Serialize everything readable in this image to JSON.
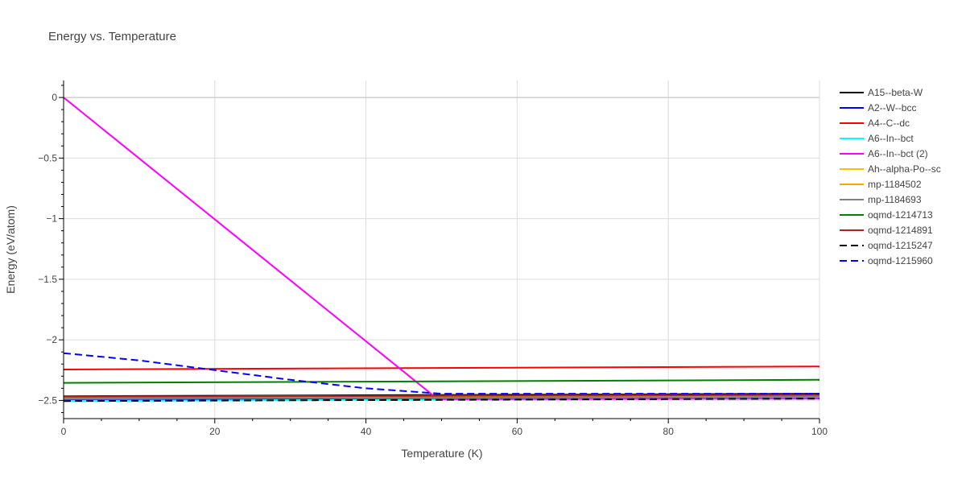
{
  "chart_data": {
    "type": "line",
    "title": "Energy vs. Temperature",
    "xlabel": "Temperature (K)",
    "ylabel": "Energy (eV/atom)",
    "xlim": [
      0,
      100
    ],
    "ylim": [
      -2.65,
      0.14
    ],
    "xticks": [
      0,
      20,
      40,
      60,
      80,
      100
    ],
    "xtick_labels": [
      "0",
      "20",
      "40",
      "60",
      "80",
      "100"
    ],
    "yticks": [
      0,
      -0.5,
      -1,
      -1.5,
      -2,
      -2.5
    ],
    "ytick_labels": [
      "0",
      "−0.5",
      "−1",
      "−1.5",
      "−2",
      "−2.5"
    ],
    "grid": true,
    "legend_position": "right",
    "series": [
      {
        "name": "A15--beta-W",
        "color": "#000000",
        "dash": "solid",
        "x": [
          0,
          100
        ],
        "y": [
          -2.465,
          -2.445
        ]
      },
      {
        "name": "A2--W--bcc",
        "color": "#0000ff",
        "dash": "solid",
        "x": [
          0,
          100
        ],
        "y": [
          -2.49,
          -2.475
        ]
      },
      {
        "name": "A4--C--dc",
        "color": "#ff0000",
        "dash": "solid",
        "x": [
          0,
          100
        ],
        "y": [
          -2.245,
          -2.22
        ]
      },
      {
        "name": "A6--In--bct",
        "color": "#00ffff",
        "dash": "solid",
        "x": [
          0,
          100
        ],
        "y": [
          -2.505,
          -2.48
        ]
      },
      {
        "name": "A6--In--bct (2)",
        "color": "#ff00ff",
        "dash": "solid",
        "x": [
          0,
          49.5,
          100
        ],
        "y": [
          0,
          -2.49,
          -2.485
        ]
      },
      {
        "name": "Ah--alpha-Po--sc",
        "color": "#ffc000",
        "dash": "solid",
        "x": [
          0,
          100
        ],
        "y": [
          -2.48,
          -2.46
        ]
      },
      {
        "name": "mp-1184502",
        "color": "#ffa500",
        "dash": "solid",
        "x": [
          0,
          100
        ],
        "y": [
          -2.47,
          -2.455
        ]
      },
      {
        "name": "mp-1184693",
        "color": "#808080",
        "dash": "solid",
        "x": [
          0,
          100
        ],
        "y": [
          -2.485,
          -2.47
        ]
      },
      {
        "name": "oqmd-1214713",
        "color": "#008000",
        "dash": "solid",
        "x": [
          0,
          100
        ],
        "y": [
          -2.355,
          -2.33
        ]
      },
      {
        "name": "oqmd-1214891",
        "color": "#b22222",
        "dash": "solid",
        "x": [
          0,
          100
        ],
        "y": [
          -2.47,
          -2.455
        ]
      },
      {
        "name": "oqmd-1215247",
        "color": "#000000",
        "dash": "dash",
        "x": [
          0,
          100
        ],
        "y": [
          -2.505,
          -2.485
        ]
      },
      {
        "name": "oqmd-1215960",
        "color": "#0000ff",
        "dash": "dash",
        "x": [
          0,
          10,
          20,
          30,
          40,
          50,
          100
        ],
        "y": [
          -2.11,
          -2.17,
          -2.25,
          -2.33,
          -2.4,
          -2.445,
          -2.445
        ]
      }
    ]
  }
}
